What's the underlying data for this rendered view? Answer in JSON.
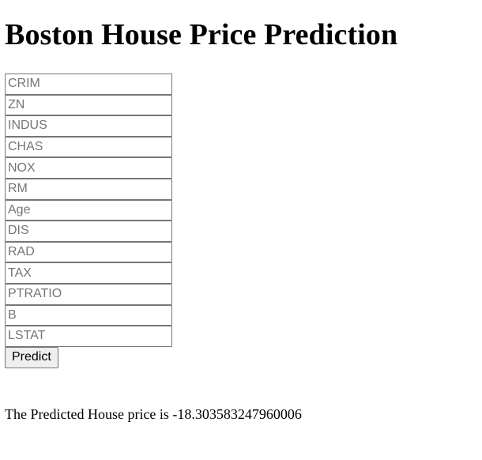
{
  "page": {
    "title": "Boston House Price Prediction"
  },
  "form": {
    "fields": [
      {
        "name": "crim",
        "placeholder": "CRIM",
        "value": ""
      },
      {
        "name": "zn",
        "placeholder": "ZN",
        "value": ""
      },
      {
        "name": "indus",
        "placeholder": "INDUS",
        "value": ""
      },
      {
        "name": "chas",
        "placeholder": "CHAS",
        "value": ""
      },
      {
        "name": "nox",
        "placeholder": "NOX",
        "value": ""
      },
      {
        "name": "rm",
        "placeholder": "RM",
        "value": ""
      },
      {
        "name": "age",
        "placeholder": "Age",
        "value": ""
      },
      {
        "name": "dis",
        "placeholder": "DIS",
        "value": ""
      },
      {
        "name": "rad",
        "placeholder": "RAD",
        "value": ""
      },
      {
        "name": "tax",
        "placeholder": "TAX",
        "value": ""
      },
      {
        "name": "ptratio",
        "placeholder": "PTRATIO",
        "value": ""
      },
      {
        "name": "b",
        "placeholder": "B",
        "value": ""
      },
      {
        "name": "lstat",
        "placeholder": "LSTAT",
        "value": ""
      }
    ],
    "submit_label": "Predict"
  },
  "result": {
    "text": "The Predicted House price is -18.303583247960006"
  }
}
